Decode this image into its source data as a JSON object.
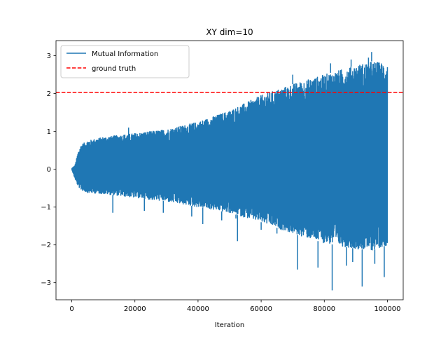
{
  "chart_data": {
    "type": "line",
    "title": "XY dim=10",
    "xlabel": "Iteration",
    "ylabel": "",
    "xlim": [
      -5000,
      105000
    ],
    "ylim": [
      -3.45,
      3.4
    ],
    "xticks": [
      0,
      20000,
      40000,
      60000,
      80000,
      100000
    ],
    "xtick_labels": [
      "0",
      "20000",
      "40000",
      "60000",
      "80000",
      "100000"
    ],
    "yticks": [
      -3,
      -2,
      -1,
      0,
      1,
      2,
      3
    ],
    "ytick_labels": [
      "−3",
      "−2",
      "−1",
      "0",
      "1",
      "2",
      "3"
    ],
    "grid": false,
    "legend_position": "top-left",
    "series": [
      {
        "name": "Mutual Information",
        "style": "solid",
        "color": "#1f77b4",
        "envelope": {
          "x": [
            0,
            1000,
            2000,
            3000,
            5000,
            10000,
            20000,
            30000,
            40000,
            50000,
            60000,
            70000,
            80000,
            90000,
            95000,
            100000
          ],
          "upper": [
            0.02,
            0.1,
            0.45,
            0.65,
            0.75,
            0.85,
            0.95,
            1.05,
            1.25,
            1.55,
            1.95,
            2.25,
            2.5,
            2.75,
            2.85,
            2.8
          ],
          "lower": [
            0.0,
            -0.25,
            -0.45,
            -0.55,
            -0.62,
            -0.65,
            -0.75,
            -0.85,
            -1.0,
            -1.15,
            -1.4,
            -1.7,
            -1.95,
            -2.1,
            -2.15,
            -2.0
          ]
        },
        "spikes": [
          {
            "x": 13000,
            "y": -1.15
          },
          {
            "x": 18000,
            "y": 1.1
          },
          {
            "x": 23000,
            "y": -1.1
          },
          {
            "x": 29000,
            "y": -1.15
          },
          {
            "x": 38000,
            "y": -1.25
          },
          {
            "x": 41500,
            "y": -1.45
          },
          {
            "x": 47500,
            "y": -1.35
          },
          {
            "x": 52000,
            "y": -1.3
          },
          {
            "x": 52500,
            "y": -1.9
          },
          {
            "x": 60000,
            "y": -1.6
          },
          {
            "x": 65000,
            "y": -1.7
          },
          {
            "x": 70000,
            "y": 2.5
          },
          {
            "x": 71500,
            "y": -2.65
          },
          {
            "x": 78000,
            "y": -2.6
          },
          {
            "x": 82000,
            "y": 2.8
          },
          {
            "x": 82500,
            "y": -3.2
          },
          {
            "x": 87000,
            "y": -2.55
          },
          {
            "x": 88500,
            "y": 2.9
          },
          {
            "x": 89000,
            "y": -2.45
          },
          {
            "x": 92000,
            "y": -3.1
          },
          {
            "x": 94000,
            "y": 2.95
          },
          {
            "x": 95000,
            "y": 3.1
          },
          {
            "x": 96000,
            "y": -2.5
          },
          {
            "x": 99000,
            "y": -2.85
          }
        ]
      },
      {
        "name": "ground truth",
        "style": "dashed",
        "color": "#ff0000",
        "y": 2.03
      }
    ]
  }
}
